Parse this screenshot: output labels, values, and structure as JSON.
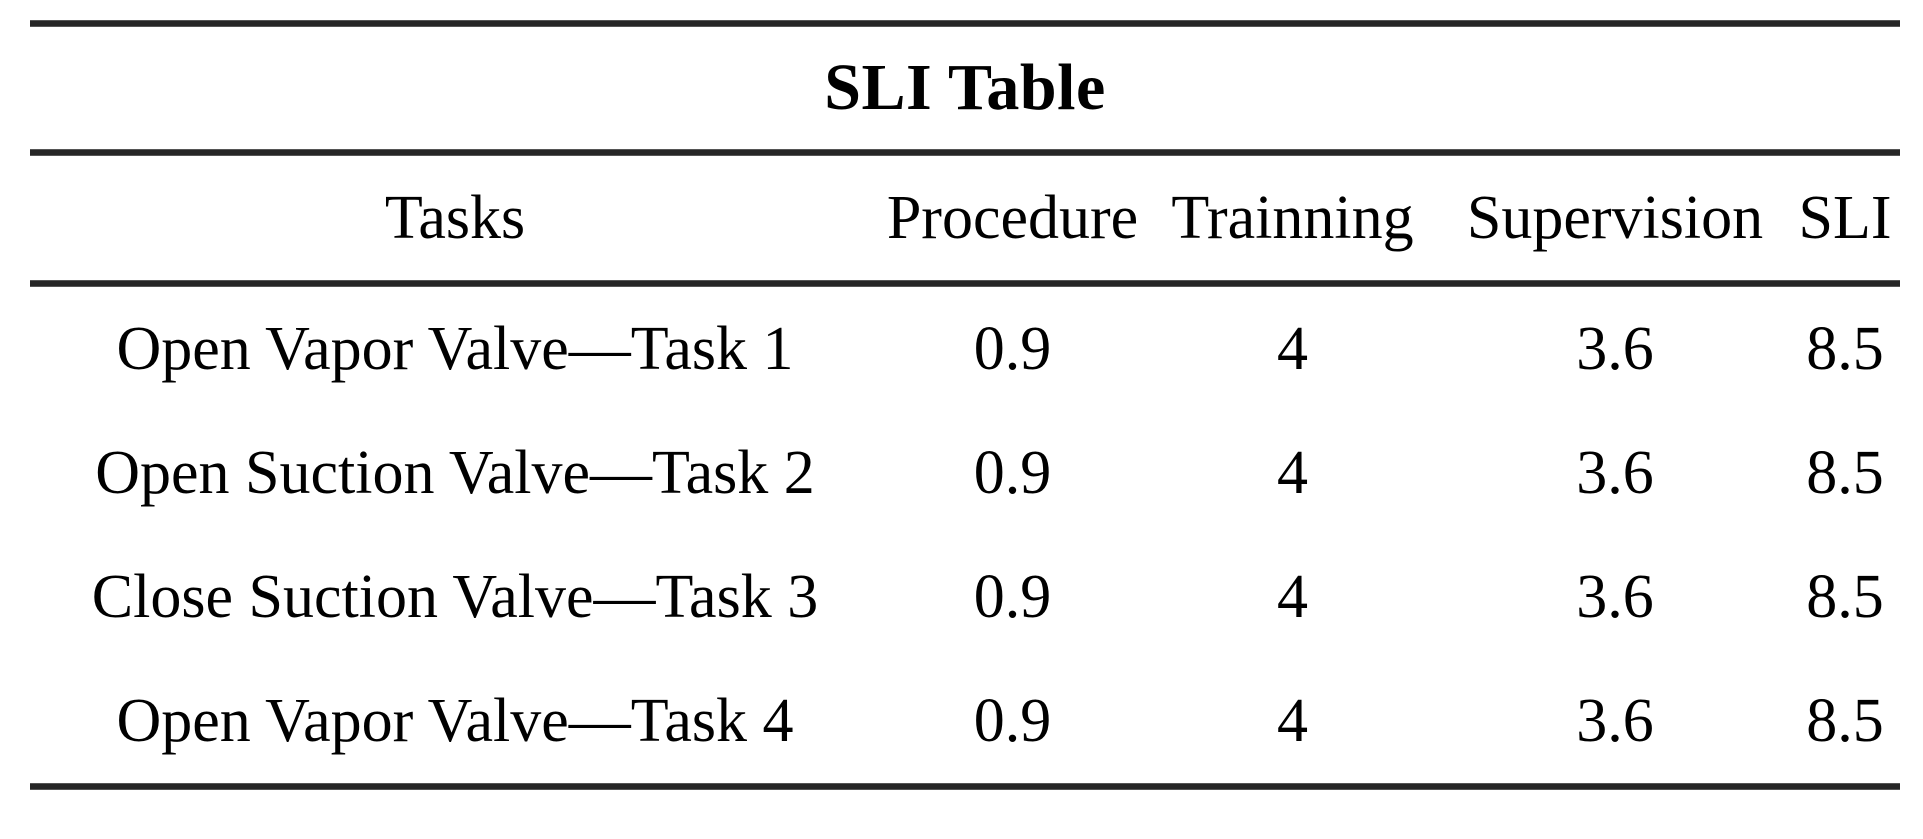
{
  "title": "SLI Table",
  "columns": [
    "Tasks",
    "Procedure",
    "Trainning",
    "Supervision",
    "SLI"
  ],
  "rows": [
    [
      "Open Vapor Valve—Task 1",
      "0.9",
      "4",
      "3.6",
      "8.5"
    ],
    [
      "Open Suction Valve—Task 2",
      "0.9",
      "4",
      "3.6",
      "8.5"
    ],
    [
      "Close Suction Valve—Task 3",
      "0.9",
      "4",
      "3.6",
      "8.5"
    ],
    [
      "Open Vapor Valve—Task 4",
      "0.9",
      "4",
      "3.6",
      "8.5"
    ]
  ],
  "colors": {
    "text": "#000000",
    "rule": "#262626",
    "background": "#ffffff"
  },
  "chart_data": {
    "type": "table",
    "title": "SLI Table",
    "columns": [
      "Tasks",
      "Procedure",
      "Trainning",
      "Supervision",
      "SLI"
    ],
    "rows": [
      {
        "task": "Open Vapor Valve—Task 1",
        "procedure": 0.9,
        "trainning": 4,
        "supervision": 3.6,
        "sli": 8.5
      },
      {
        "task": "Open Suction Valve—Task 2",
        "procedure": 0.9,
        "trainning": 4,
        "supervision": 3.6,
        "sli": 8.5
      },
      {
        "task": "Close Suction Valve—Task 3",
        "procedure": 0.9,
        "trainning": 4,
        "supervision": 3.6,
        "sli": 8.5
      },
      {
        "task": "Open Vapor Valve—Task 4",
        "procedure": 0.9,
        "trainning": 4,
        "supervision": 3.6,
        "sli": 8.5
      }
    ]
  }
}
